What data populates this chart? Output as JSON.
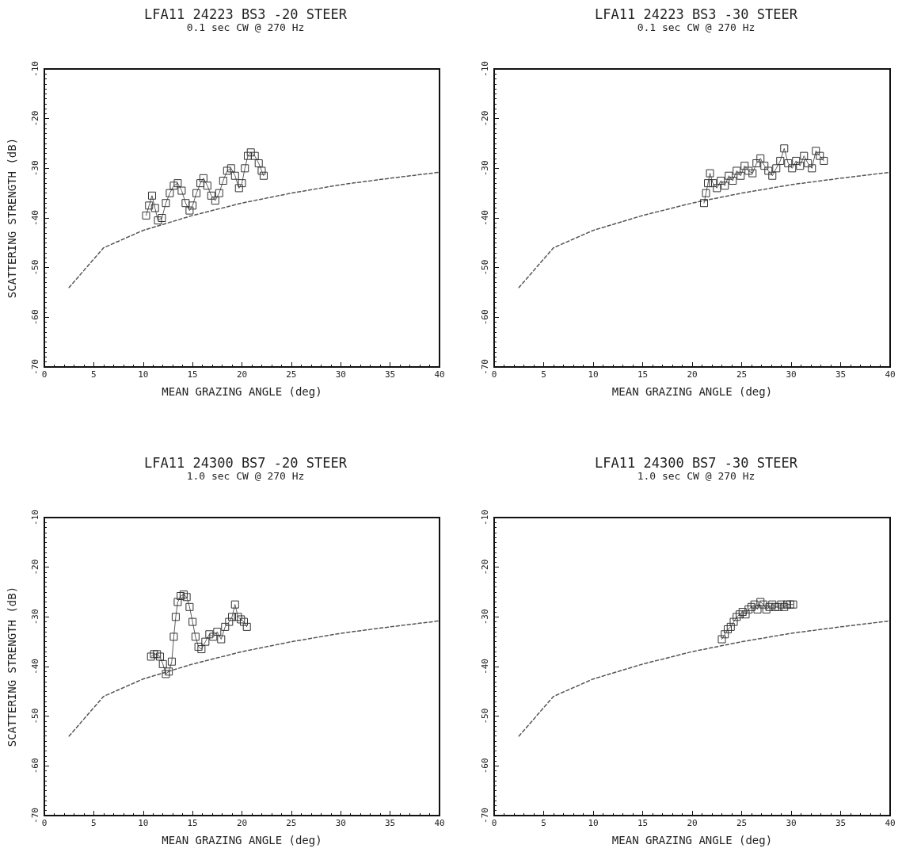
{
  "chart_data": [
    {
      "type": "line",
      "title": "LFA11 24223 BS3 -20 STEER",
      "subtitle": "0.1 sec CW @ 270 Hz",
      "xlabel": "MEAN GRAZING ANGLE (deg)",
      "ylabel": "SCATTERING STRENGTH (dB)",
      "xlim": [
        0,
        40
      ],
      "ylim": [
        -70,
        -10
      ],
      "xticks": [
        0,
        5,
        10,
        15,
        20,
        25,
        30,
        35,
        40
      ],
      "yticks": [
        -70,
        -60,
        -50,
        -40,
        -30,
        -20,
        -10
      ],
      "grid": false,
      "series": [
        {
          "marker": "square",
          "color": "#333333",
          "x": [
            10.3,
            10.6,
            10.9,
            11.2,
            11.5,
            11.9,
            12.3,
            12.7,
            13.1,
            13.5,
            13.9,
            14.3,
            14.7,
            15.0,
            15.4,
            15.8,
            16.1,
            16.5,
            16.9,
            17.3,
            17.7,
            18.1,
            18.5,
            18.9,
            19.3,
            19.7,
            20.0,
            20.3,
            20.6,
            20.9,
            21.3,
            21.7,
            22.0,
            22.2
          ],
          "values": [
            -39.5,
            -37.5,
            -35.5,
            -38,
            -40.5,
            -40,
            -37,
            -35,
            -33.5,
            -33,
            -34.5,
            -37,
            -38.5,
            -37.5,
            -35,
            -33,
            -32,
            -33.5,
            -35.5,
            -36.5,
            -35,
            -32.5,
            -30.5,
            -30,
            -31.5,
            -34,
            -33,
            -30,
            -27.5,
            -26.8,
            -27.5,
            -29,
            -30.5,
            -31.5
          ]
        },
        {
          "marker": "none",
          "line_style": "dashed",
          "color": "#555555",
          "x": [
            2.5,
            6,
            10,
            15,
            20,
            25,
            30,
            35,
            40
          ],
          "values": [
            -54,
            -46,
            -42.5,
            -39.5,
            -37,
            -35,
            -33.3,
            -32,
            -30.8
          ]
        }
      ]
    },
    {
      "type": "line",
      "title": "LFA11 24223 BS3 -30 STEER",
      "subtitle": "0.1 sec CW @ 270 Hz",
      "xlabel": "MEAN GRAZING ANGLE (deg)",
      "xlim": [
        0,
        40
      ],
      "ylim": [
        -70,
        -10
      ],
      "xticks": [
        0,
        5,
        10,
        15,
        20,
        25,
        30,
        35,
        40
      ],
      "yticks": [
        -70,
        -60,
        -50,
        -40,
        -30,
        -20,
        -10
      ],
      "grid": false,
      "series": [
        {
          "marker": "square",
          "color": "#333333",
          "x": [
            21.2,
            21.4,
            21.6,
            21.8,
            22.1,
            22.5,
            22.9,
            23.3,
            23.7,
            24.1,
            24.5,
            24.9,
            25.3,
            25.7,
            26.1,
            26.5,
            26.9,
            27.3,
            27.7,
            28.1,
            28.5,
            28.9,
            29.3,
            29.7,
            30.1,
            30.5,
            30.9,
            31.3,
            31.7,
            32.1,
            32.5,
            32.9,
            33.3
          ],
          "values": [
            -37,
            -35,
            -33,
            -31,
            -33,
            -34,
            -32.5,
            -33.5,
            -31.5,
            -32.5,
            -30.5,
            -31.5,
            -29.5,
            -30.5,
            -31,
            -29,
            -28,
            -29.5,
            -30.5,
            -31.5,
            -30,
            -28.5,
            -26,
            -29,
            -30,
            -28.5,
            -29.5,
            -27.5,
            -29,
            -30,
            -26.5,
            -27.5,
            -28.5
          ]
        },
        {
          "marker": "none",
          "line_style": "dashed",
          "color": "#555555",
          "x": [
            2.5,
            6,
            10,
            15,
            20,
            25,
            30,
            35,
            40
          ],
          "values": [
            -54,
            -46,
            -42.5,
            -39.5,
            -37,
            -35,
            -33.3,
            -32,
            -30.8
          ]
        }
      ]
    },
    {
      "type": "line",
      "title": "LFA11 24300 BS7 -20 STEER",
      "subtitle": "1.0 sec CW @ 270 Hz",
      "xlabel": "MEAN GRAZING ANGLE (deg)",
      "ylabel": "SCATTERING STRENGTH (dB)",
      "xlim": [
        0,
        40
      ],
      "ylim": [
        -70,
        -10
      ],
      "xticks": [
        0,
        5,
        10,
        15,
        20,
        25,
        30,
        35,
        40
      ],
      "yticks": [
        -70,
        -60,
        -50,
        -40,
        -30,
        -20,
        -10
      ],
      "grid": false,
      "series": [
        {
          "marker": "square",
          "color": "#333333",
          "x": [
            10.8,
            11.1,
            11.4,
            11.7,
            12.0,
            12.3,
            12.6,
            12.9,
            13.1,
            13.3,
            13.5,
            13.8,
            14.1,
            14.4,
            14.7,
            15.0,
            15.3,
            15.6,
            15.9,
            16.3,
            16.7,
            17.1,
            17.5,
            17.9,
            18.3,
            18.7,
            19.0,
            19.3,
            19.6,
            19.9,
            20.2,
            20.5
          ],
          "values": [
            -38,
            -37.5,
            -37.5,
            -38,
            -39.5,
            -41.5,
            -41,
            -39,
            -34,
            -30,
            -27,
            -25.8,
            -25.5,
            -26,
            -28,
            -31,
            -34,
            -36,
            -36.5,
            -35,
            -33.5,
            -34,
            -33,
            -34.5,
            -32,
            -31,
            -30,
            -27.5,
            -30,
            -30.5,
            -31,
            -32
          ]
        },
        {
          "marker": "none",
          "line_style": "dashed",
          "color": "#555555",
          "x": [
            2.5,
            6,
            10,
            15,
            20,
            25,
            30,
            35,
            40
          ],
          "values": [
            -54,
            -46,
            -42.5,
            -39.5,
            -37,
            -35,
            -33.3,
            -32,
            -30.8
          ]
        }
      ]
    },
    {
      "type": "line",
      "title": "LFA11 24300 BS7 -30 STEER",
      "subtitle": "1.0 sec CW @ 270 Hz",
      "xlabel": "MEAN GRAZING ANGLE (deg)",
      "xlim": [
        0,
        40
      ],
      "ylim": [
        -70,
        -10
      ],
      "xticks": [
        0,
        5,
        10,
        15,
        20,
        25,
        30,
        35,
        40
      ],
      "yticks": [
        -70,
        -60,
        -50,
        -40,
        -30,
        -20,
        -10
      ],
      "grid": false,
      "series": [
        {
          "marker": "square",
          "color": "#333333",
          "x": [
            23.0,
            23.3,
            23.6,
            23.9,
            24.2,
            24.5,
            24.8,
            25.1,
            25.4,
            25.7,
            26.0,
            26.3,
            26.6,
            26.9,
            27.2,
            27.5,
            27.8,
            28.1,
            28.4,
            28.7,
            29.0,
            29.3,
            29.6,
            29.9,
            30.2
          ],
          "values": [
            -34.5,
            -33.5,
            -32.5,
            -32,
            -31,
            -30,
            -29.5,
            -29,
            -29.5,
            -28.5,
            -28,
            -27.5,
            -28.5,
            -27,
            -27.5,
            -28.5,
            -28,
            -27.5,
            -28,
            -28,
            -27.5,
            -28,
            -27.5,
            -27.5,
            -27.5
          ]
        },
        {
          "marker": "none",
          "line_style": "dashed",
          "color": "#555555",
          "x": [
            2.5,
            6,
            10,
            15,
            20,
            25,
            30,
            35,
            40
          ],
          "values": [
            -54,
            -46,
            -42.5,
            -39.5,
            -37,
            -35,
            -33.3,
            -32,
            -30.8
          ]
        }
      ]
    }
  ]
}
